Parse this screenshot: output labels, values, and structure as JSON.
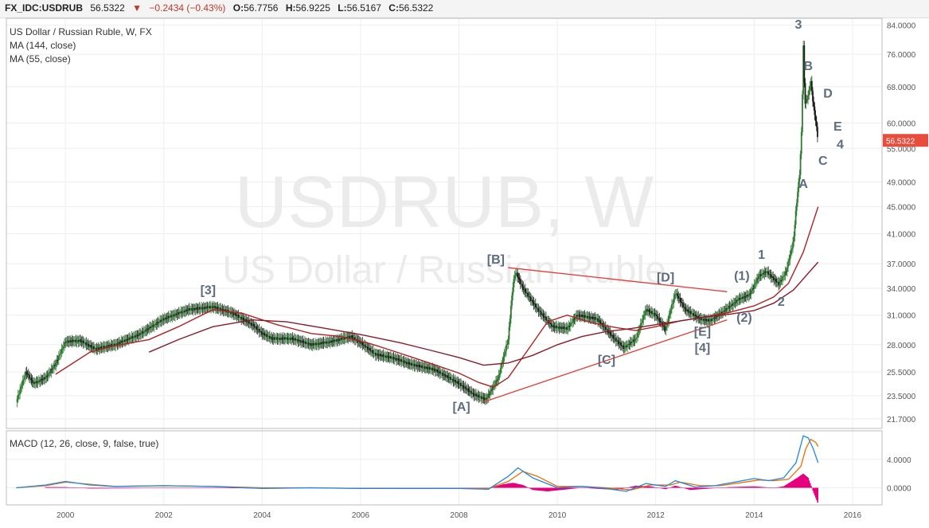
{
  "header": {
    "symbol": "FX_IDC:USDRUB",
    "last": "56.5322",
    "change": "−0.2434 (−0.43%)",
    "o_label": "O:",
    "o_value": "56.7756",
    "h_label": "H:",
    "h_value": "56.9225",
    "l_label": "L:",
    "l_value": "56.5167",
    "c_label": "C:",
    "c_value": "56.5322"
  },
  "legend": {
    "title": "US Dollar / Russian Ruble, W, FX",
    "ma_slow": "MA (144, close)",
    "ma_fast": "MA (55, close)",
    "macd": "MACD (12, 26, close, 9, false, true)"
  },
  "watermark": {
    "line1": "USDRUB, W",
    "line2": "US Dollar / Russian Ruble"
  },
  "colors": {
    "candles_up": "#2e7d32",
    "candles_down": "#1a1a1a",
    "ma_144": "#8b1a2b",
    "ma_55": "#b22222",
    "trendline": "#e53935",
    "wave_label": "#5d6d7e",
    "macd_line": "#1e88e5",
    "signal_line": "#ef6c00",
    "histogram": "#e6007e",
    "price_tag": "#e74c3c"
  },
  "chart_data": [
    {
      "type": "line",
      "title": "US Dollar / Russian Ruble, W, FX",
      "y_scale": "log",
      "ylim": [
        21.0,
        86.0
      ],
      "xlim": [
        1998.8,
        2016.6
      ],
      "y_ticks": [
        "84.0000",
        "76.0000",
        "68.0000",
        "60.0000",
        "55.0000",
        "49.0000",
        "45.0000",
        "41.0000",
        "37.0000",
        "34.0000",
        "31.0000",
        "28.0000",
        "25.5000",
        "23.5000",
        "21.7000"
      ],
      "x_ticks": [
        "2000",
        "2002",
        "2004",
        "2006",
        "2008",
        "2010",
        "2012",
        "2014",
        "2016"
      ],
      "last_price": "56.5322",
      "series": [
        {
          "name": "USDRUB",
          "points": [
            [
              1999.0,
              23.0
            ],
            [
              1999.2,
              25.5
            ],
            [
              1999.35,
              24.5
            ],
            [
              1999.6,
              25.0
            ],
            [
              1999.8,
              26.2
            ],
            [
              2000.0,
              28.3
            ],
            [
              2000.3,
              28.4
            ],
            [
              2000.6,
              27.6
            ],
            [
              2001.0,
              28.0
            ],
            [
              2001.5,
              29.0
            ],
            [
              2002.0,
              30.6
            ],
            [
              2002.5,
              31.6
            ],
            [
              2003.0,
              31.9
            ],
            [
              2003.4,
              31.2
            ],
            [
              2003.8,
              30.0
            ],
            [
              2004.0,
              29.1
            ],
            [
              2004.2,
              28.6
            ],
            [
              2004.6,
              28.6
            ],
            [
              2005.0,
              28.0
            ],
            [
              2005.4,
              28.3
            ],
            [
              2005.8,
              28.8
            ],
            [
              2006.0,
              28.2
            ],
            [
              2006.3,
              27.1
            ],
            [
              2006.7,
              26.7
            ],
            [
              2007.0,
              26.2
            ],
            [
              2007.5,
              25.7
            ],
            [
              2008.0,
              24.5
            ],
            [
              2008.3,
              23.6
            ],
            [
              2008.55,
              23.2
            ],
            [
              2008.8,
              25.0
            ],
            [
              2009.0,
              28.5
            ],
            [
              2009.1,
              34.5
            ],
            [
              2009.15,
              36.0
            ],
            [
              2009.3,
              34.0
            ],
            [
              2009.6,
              31.6
            ],
            [
              2009.9,
              29.8
            ],
            [
              2010.2,
              29.6
            ],
            [
              2010.4,
              31.0
            ],
            [
              2010.8,
              30.6
            ],
            [
              2011.1,
              28.9
            ],
            [
              2011.35,
              27.7
            ],
            [
              2011.6,
              28.6
            ],
            [
              2011.8,
              31.6
            ],
            [
              2012.0,
              31.0
            ],
            [
              2012.2,
              29.5
            ],
            [
              2012.4,
              33.5
            ],
            [
              2012.6,
              31.6
            ],
            [
              2012.9,
              30.6
            ],
            [
              2013.1,
              30.4
            ],
            [
              2013.4,
              31.5
            ],
            [
              2013.7,
              32.8
            ],
            [
              2013.9,
              33.2
            ],
            [
              2014.1,
              35.5
            ],
            [
              2014.25,
              36.0
            ],
            [
              2014.5,
              34.5
            ],
            [
              2014.65,
              36.0
            ],
            [
              2014.8,
              40.0
            ],
            [
              2014.85,
              44.5
            ],
            [
              2014.93,
              51.0
            ],
            [
              2014.97,
              60.0
            ],
            [
              2015.0,
              78.0
            ],
            [
              2015.03,
              64.0
            ],
            [
              2015.1,
              66.0
            ],
            [
              2015.15,
              69.5
            ],
            [
              2015.2,
              64.0
            ],
            [
              2015.25,
              60.5
            ],
            [
              2015.3,
              56.5
            ]
          ]
        },
        {
          "name": "MA (55, close)",
          "points": [
            [
              1999.8,
              25.3
            ],
            [
              2000.5,
              27.3
            ],
            [
              2001.0,
              27.9
            ],
            [
              2001.7,
              28.5
            ],
            [
              2002.3,
              29.8
            ],
            [
              2003.0,
              31.6
            ],
            [
              2003.6,
              31.2
            ],
            [
              2004.3,
              30.0
            ],
            [
              2005.0,
              29.1
            ],
            [
              2005.6,
              28.8
            ],
            [
              2006.2,
              28.1
            ],
            [
              2006.8,
              27.2
            ],
            [
              2007.4,
              26.3
            ],
            [
              2008.0,
              25.4
            ],
            [
              2008.4,
              24.6
            ],
            [
              2008.7,
              24.2
            ],
            [
              2009.0,
              25.0
            ],
            [
              2009.4,
              27.5
            ],
            [
              2009.8,
              30.3
            ],
            [
              2010.2,
              31.0
            ],
            [
              2010.7,
              30.2
            ],
            [
              2011.2,
              29.7
            ],
            [
              2011.6,
              29.4
            ],
            [
              2012.0,
              29.8
            ],
            [
              2012.5,
              30.4
            ],
            [
              2013.0,
              30.8
            ],
            [
              2013.5,
              31.3
            ],
            [
              2014.0,
              32.0
            ],
            [
              2014.4,
              33.0
            ],
            [
              2014.7,
              34.6
            ],
            [
              2015.0,
              38.5
            ],
            [
              2015.3,
              45.0
            ]
          ]
        },
        {
          "name": "MA (144, close)",
          "points": [
            [
              2001.7,
              27.3
            ],
            [
              2002.3,
              28.5
            ],
            [
              2003.0,
              29.8
            ],
            [
              2003.8,
              30.5
            ],
            [
              2004.5,
              30.3
            ],
            [
              2005.2,
              29.7
            ],
            [
              2006.0,
              29.0
            ],
            [
              2006.8,
              28.2
            ],
            [
              2007.4,
              27.5
            ],
            [
              2008.0,
              26.8
            ],
            [
              2008.5,
              26.1
            ],
            [
              2009.0,
              26.3
            ],
            [
              2009.5,
              27.0
            ],
            [
              2010.0,
              28.0
            ],
            [
              2010.5,
              28.8
            ],
            [
              2011.0,
              29.3
            ],
            [
              2011.5,
              29.6
            ],
            [
              2012.0,
              30.0
            ],
            [
              2012.5,
              30.4
            ],
            [
              2013.0,
              30.8
            ],
            [
              2013.5,
              31.1
            ],
            [
              2014.0,
              31.5
            ],
            [
              2014.4,
              32.3
            ],
            [
              2014.8,
              33.8
            ],
            [
              2015.3,
              37.2
            ]
          ]
        }
      ],
      "trendlines": [
        {
          "from": [
            2008.5,
            23.0
          ],
          "to": [
            2013.45,
            30.5
          ]
        },
        {
          "from": [
            2009.0,
            36.5
          ],
          "to": [
            2013.45,
            33.6
          ]
        }
      ],
      "annotations": [
        {
          "text": "3",
          "x": 2014.9,
          "y": 83.0
        },
        {
          "text": "B",
          "x": 2015.1,
          "y": 72.0
        },
        {
          "text": "D",
          "x": 2015.5,
          "y": 65.5
        },
        {
          "text": "E",
          "x": 2015.7,
          "y": 58.5
        },
        {
          "text": "4",
          "x": 2015.75,
          "y": 55.0
        },
        {
          "text": "C",
          "x": 2015.4,
          "y": 52.0
        },
        {
          "text": "A",
          "x": 2015.0,
          "y": 48.0
        },
        {
          "text": "1",
          "x": 2014.15,
          "y": 37.6
        },
        {
          "text": "(1)",
          "x": 2013.75,
          "y": 35.0
        },
        {
          "text": "2",
          "x": 2014.55,
          "y": 32.0
        },
        {
          "text": "(2)",
          "x": 2013.8,
          "y": 30.3
        },
        {
          "text": "[3]",
          "x": 2002.9,
          "y": 33.3
        },
        {
          "text": "[B]",
          "x": 2008.75,
          "y": 37.0
        },
        {
          "text": "[D]",
          "x": 2012.2,
          "y": 34.8
        },
        {
          "text": "[E]",
          "x": 2012.95,
          "y": 28.9
        },
        {
          "text": "[4]",
          "x": 2012.95,
          "y": 27.3
        },
        {
          "text": "[C]",
          "x": 2011.0,
          "y": 26.2
        },
        {
          "text": "[A]",
          "x": 2008.05,
          "y": 22.3
        }
      ]
    },
    {
      "type": "line",
      "title": "MACD (12, 26, close, 9, false, true)",
      "ylim": [
        -2.4,
        8.0
      ],
      "y_ticks": [
        "4.0000",
        "0.0000"
      ],
      "series": [
        {
          "name": "MACD",
          "points": [
            [
              1999.0,
              0.0
            ],
            [
              1999.6,
              0.4
            ],
            [
              2000.0,
              0.9
            ],
            [
              2000.5,
              0.4
            ],
            [
              2001.0,
              0.2
            ],
            [
              2002.0,
              0.3
            ],
            [
              2003.0,
              0.2
            ],
            [
              2004.0,
              -0.1
            ],
            [
              2005.0,
              0.0
            ],
            [
              2006.0,
              -0.1
            ],
            [
              2007.0,
              -0.1
            ],
            [
              2008.0,
              -0.1
            ],
            [
              2008.6,
              -0.2
            ],
            [
              2009.0,
              1.6
            ],
            [
              2009.2,
              2.8
            ],
            [
              2009.5,
              1.4
            ],
            [
              2010.0,
              0.0
            ],
            [
              2010.5,
              0.2
            ],
            [
              2011.0,
              -0.1
            ],
            [
              2011.4,
              -0.5
            ],
            [
              2011.8,
              0.6
            ],
            [
              2012.2,
              0.2
            ],
            [
              2012.4,
              1.0
            ],
            [
              2012.8,
              0.1
            ],
            [
              2013.2,
              0.3
            ],
            [
              2013.6,
              0.8
            ],
            [
              2014.0,
              1.3
            ],
            [
              2014.3,
              1.0
            ],
            [
              2014.6,
              1.4
            ],
            [
              2014.85,
              3.5
            ],
            [
              2015.0,
              7.3
            ],
            [
              2015.1,
              7.0
            ],
            [
              2015.2,
              5.5
            ],
            [
              2015.3,
              3.5
            ]
          ]
        },
        {
          "name": "Signal",
          "points": [
            [
              1999.0,
              0.0
            ],
            [
              1999.6,
              0.3
            ],
            [
              2000.0,
              0.8
            ],
            [
              2000.5,
              0.5
            ],
            [
              2001.0,
              0.2
            ],
            [
              2002.0,
              0.3
            ],
            [
              2003.0,
              0.2
            ],
            [
              2004.0,
              0.0
            ],
            [
              2005.0,
              0.0
            ],
            [
              2006.0,
              -0.1
            ],
            [
              2007.0,
              -0.1
            ],
            [
              2008.0,
              -0.1
            ],
            [
              2008.6,
              -0.1
            ],
            [
              2009.0,
              0.9
            ],
            [
              2009.3,
              2.3
            ],
            [
              2009.6,
              1.6
            ],
            [
              2010.0,
              0.2
            ],
            [
              2010.5,
              0.2
            ],
            [
              2011.0,
              0.0
            ],
            [
              2011.5,
              -0.3
            ],
            [
              2011.9,
              0.4
            ],
            [
              2012.3,
              0.4
            ],
            [
              2012.5,
              0.8
            ],
            [
              2012.9,
              0.3
            ],
            [
              2013.3,
              0.3
            ],
            [
              2013.7,
              0.7
            ],
            [
              2014.1,
              1.1
            ],
            [
              2014.4,
              1.0
            ],
            [
              2014.7,
              1.2
            ],
            [
              2014.95,
              3.0
            ],
            [
              2015.05,
              5.5
            ],
            [
              2015.15,
              6.8
            ],
            [
              2015.25,
              6.4
            ],
            [
              2015.3,
              5.8
            ]
          ]
        },
        {
          "name": "Histogram",
          "points": [
            [
              1999.6,
              0.1
            ],
            [
              2000.0,
              0.1
            ],
            [
              2000.5,
              -0.1
            ],
            [
              2003.0,
              0.0
            ],
            [
              2004.0,
              -0.1
            ],
            [
              2005.0,
              0.0
            ],
            [
              2008.6,
              -0.1
            ],
            [
              2008.9,
              0.5
            ],
            [
              2009.1,
              0.7
            ],
            [
              2009.3,
              0.4
            ],
            [
              2009.5,
              -0.3
            ],
            [
              2009.8,
              -0.5
            ],
            [
              2010.5,
              0.0
            ],
            [
              2011.2,
              -0.3
            ],
            [
              2011.6,
              0.3
            ],
            [
              2011.9,
              0.2
            ],
            [
              2012.2,
              -0.2
            ],
            [
              2012.4,
              0.3
            ],
            [
              2012.7,
              -0.3
            ],
            [
              2013.5,
              0.1
            ],
            [
              2014.0,
              0.2
            ],
            [
              2014.4,
              0.0
            ],
            [
              2014.6,
              0.2
            ],
            [
              2014.9,
              1.5
            ],
            [
              2015.0,
              2.0
            ],
            [
              2015.1,
              1.4
            ],
            [
              2015.2,
              -0.5
            ],
            [
              2015.3,
              -2.2
            ]
          ]
        }
      ]
    }
  ]
}
